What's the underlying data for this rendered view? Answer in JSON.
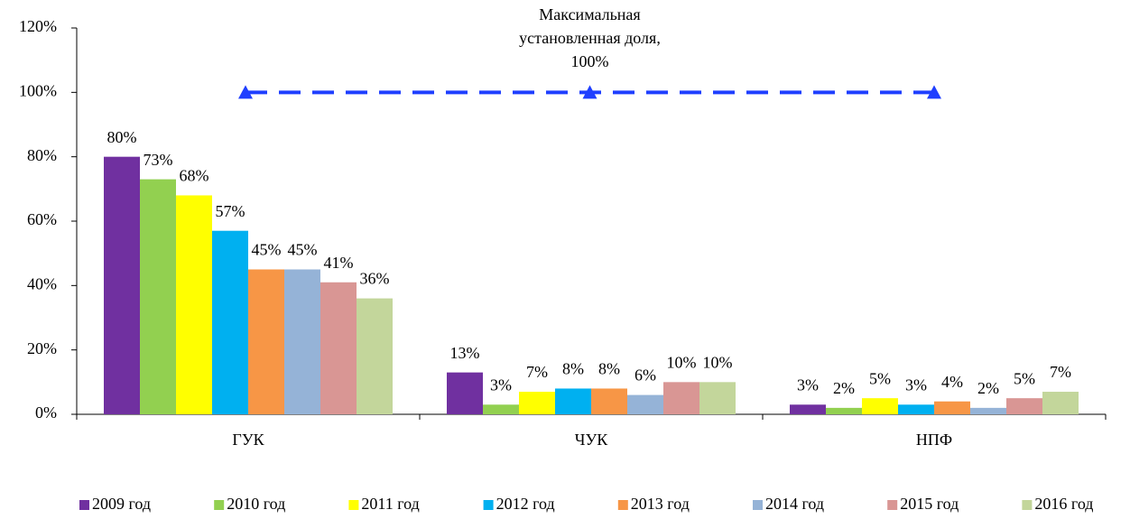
{
  "chart_data": {
    "type": "bar",
    "categories": [
      "ГУК",
      "ЧУК",
      "НПФ"
    ],
    "series": [
      {
        "name": "2009 год",
        "color": "#7030a0",
        "values": [
          80,
          13,
          3
        ],
        "value_labels": [
          "80%",
          "13%",
          "3%"
        ]
      },
      {
        "name": "2010 год",
        "color": "#92d050",
        "values": [
          73,
          3,
          2
        ],
        "value_labels": [
          "73%",
          "3%",
          "2%"
        ]
      },
      {
        "name": "2011 год",
        "color": "#ffff00",
        "values": [
          68,
          7,
          5
        ],
        "value_labels": [
          "68%",
          "7%",
          "5%"
        ]
      },
      {
        "name": "2012 год",
        "color": "#00b0f0",
        "values": [
          57,
          8,
          3
        ],
        "value_labels": [
          "57%",
          "8%",
          "3%"
        ]
      },
      {
        "name": "2013 год",
        "color": "#f79646",
        "values": [
          45,
          8,
          4
        ],
        "value_labels": [
          "45%",
          "8%",
          "4%"
        ]
      },
      {
        "name": "2014 год",
        "color": "#95b3d7",
        "values": [
          45,
          6,
          2
        ],
        "value_labels": [
          "45%",
          "6%",
          "2%"
        ]
      },
      {
        "name": "2015 год",
        "color": "#d99694",
        "values": [
          41,
          10,
          5
        ],
        "value_labels": [
          "41%",
          "10%",
          "5%"
        ]
      },
      {
        "name": "2016 год",
        "color": "#c3d69b",
        "values": [
          36,
          10,
          7
        ],
        "value_labels": [
          "36%",
          "10%",
          "7%"
        ]
      }
    ],
    "ylim": [
      0,
      120
    ],
    "yticks": [
      {
        "value": 0,
        "label": "0%"
      },
      {
        "value": 20,
        "label": "20%"
      },
      {
        "value": 40,
        "label": "40%"
      },
      {
        "value": 60,
        "label": "60%"
      },
      {
        "value": 80,
        "label": "80%"
      },
      {
        "value": 100,
        "label": "100%"
      },
      {
        "value": 120,
        "label": "120%"
      }
    ],
    "annotation": {
      "lines": [
        "Максимальная",
        "установленная доля,",
        "100%"
      ],
      "value": 100,
      "color": "#1f3fff"
    },
    "legend": "bottom"
  }
}
